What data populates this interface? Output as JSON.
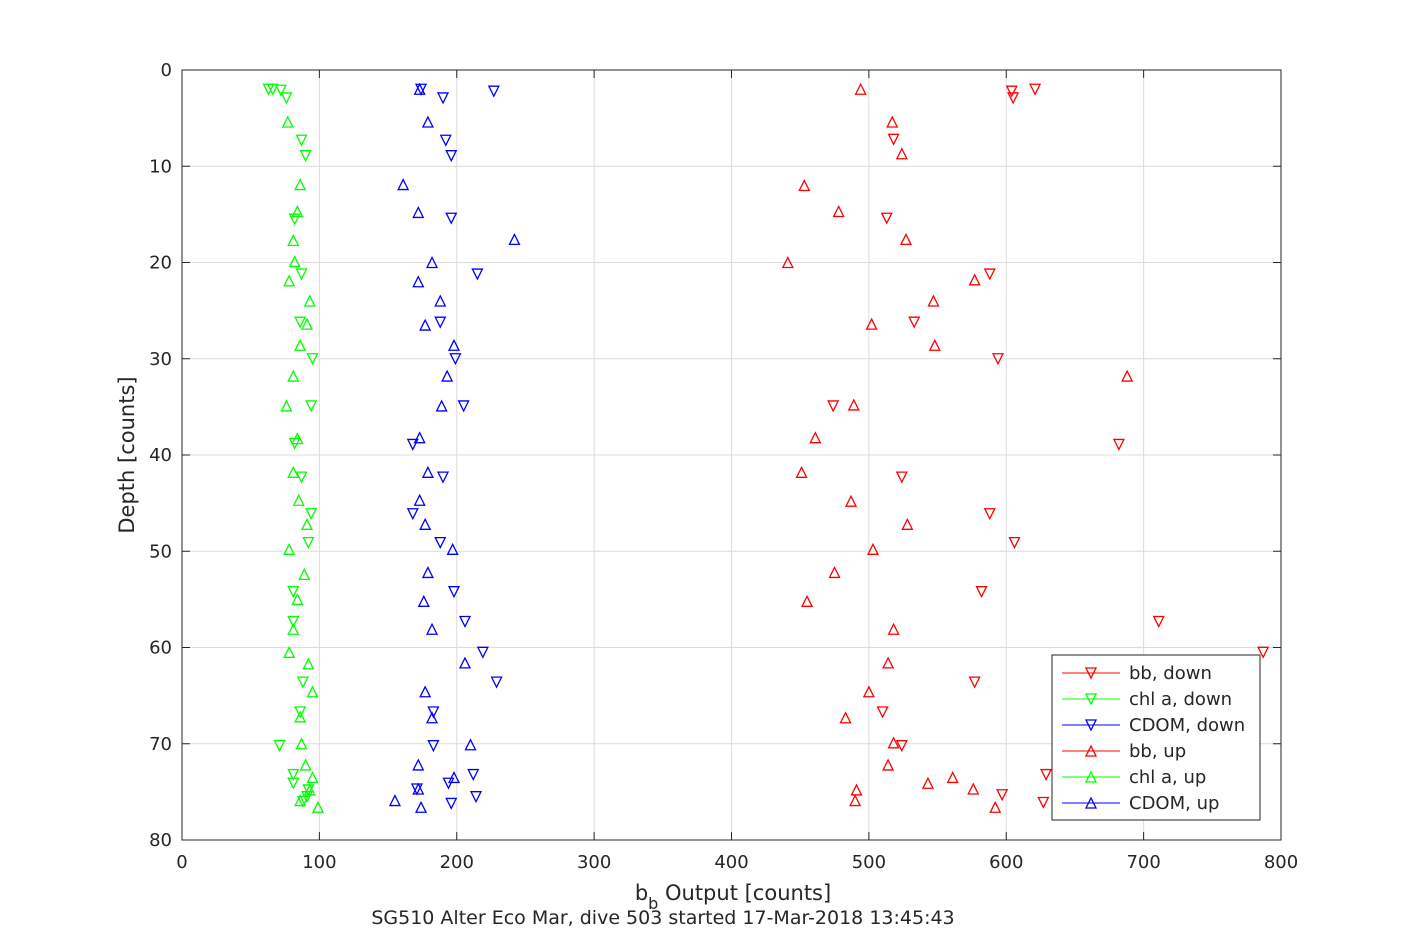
{
  "chart_data": {
    "type": "scatter",
    "xlabel": "b_b Output [counts]",
    "xlabel_main": "b",
    "xlabel_sub": "b",
    "xlabel_rest": " Output [counts]",
    "ylabel": "Depth [counts]",
    "caption": "SG510 Alter Eco Mar, dive 503 started 17-Mar-2018 13:45:43",
    "xlim": [
      0,
      800
    ],
    "ylim": [
      0,
      80
    ],
    "y_reversed": true,
    "grid": true,
    "legend_position": "bottom-right",
    "xticks": [
      0,
      100,
      200,
      300,
      400,
      500,
      600,
      700,
      800
    ],
    "yticks": [
      0,
      10,
      20,
      30,
      40,
      50,
      60,
      70,
      80
    ],
    "series": [
      {
        "name": "bb, down",
        "color": "#ff0000",
        "marker": "triangle-down",
        "points": [
          [
            604,
            2.2
          ],
          [
            621,
            2.0
          ],
          [
            605,
            2.9
          ],
          [
            518,
            7.2
          ],
          [
            513,
            15.4
          ],
          [
            588,
            21.2
          ],
          [
            533,
            26.2
          ],
          [
            594,
            30.0
          ],
          [
            474,
            34.9
          ],
          [
            682,
            38.9
          ],
          [
            524,
            42.3
          ],
          [
            588,
            46.1
          ],
          [
            606,
            49.1
          ],
          [
            582,
            54.2
          ],
          [
            711,
            57.3
          ],
          [
            787,
            60.5
          ],
          [
            577,
            63.6
          ],
          [
            510,
            66.7
          ],
          [
            524,
            70.2
          ],
          [
            629,
            73.2
          ],
          [
            597,
            75.3
          ],
          [
            627,
            76.1
          ]
        ]
      },
      {
        "name": "chl a, down",
        "color": "#00ff00",
        "marker": "triangle-down",
        "points": [
          [
            63,
            2.0
          ],
          [
            66,
            2.0
          ],
          [
            72,
            2.1
          ],
          [
            76,
            2.9
          ],
          [
            87,
            7.3
          ],
          [
            90,
            8.9
          ],
          [
            82,
            15.5
          ],
          [
            87,
            21.2
          ],
          [
            86,
            26.2
          ],
          [
            95,
            30.0
          ],
          [
            94,
            34.9
          ],
          [
            82,
            38.8
          ],
          [
            87,
            42.3
          ],
          [
            94,
            46.1
          ],
          [
            92,
            49.1
          ],
          [
            81,
            54.2
          ],
          [
            81,
            57.3
          ],
          [
            88,
            63.6
          ],
          [
            86,
            66.7
          ],
          [
            71,
            70.2
          ],
          [
            81,
            73.2
          ],
          [
            81,
            74.1
          ],
          [
            92,
            74.8
          ],
          [
            91,
            75.5
          ],
          [
            88,
            76.0
          ]
        ]
      },
      {
        "name": "CDOM, down",
        "color": "#0000ff",
        "marker": "triangle-down",
        "points": [
          [
            174,
            2.0
          ],
          [
            227,
            2.2
          ],
          [
            190,
            2.9
          ],
          [
            192,
            7.3
          ],
          [
            196,
            8.9
          ],
          [
            196,
            15.4
          ],
          [
            215,
            21.2
          ],
          [
            188,
            26.2
          ],
          [
            199,
            30.0
          ],
          [
            205,
            34.9
          ],
          [
            168,
            38.9
          ],
          [
            190,
            42.3
          ],
          [
            168,
            46.1
          ],
          [
            188,
            49.1
          ],
          [
            198,
            54.2
          ],
          [
            206,
            57.3
          ],
          [
            219,
            60.5
          ],
          [
            229,
            63.6
          ],
          [
            183,
            66.7
          ],
          [
            183,
            70.2
          ],
          [
            212,
            73.2
          ],
          [
            194,
            74.1
          ],
          [
            171,
            74.7
          ],
          [
            214,
            75.5
          ],
          [
            196,
            76.2
          ]
        ]
      },
      {
        "name": "bb, up",
        "color": "#ff0000",
        "marker": "triangle-up",
        "points": [
          [
            494,
            2.0
          ],
          [
            517,
            5.4
          ],
          [
            524,
            8.7
          ],
          [
            453,
            12.0
          ],
          [
            478,
            14.7
          ],
          [
            527,
            17.6
          ],
          [
            441,
            20.0
          ],
          [
            577,
            21.8
          ],
          [
            547,
            24.0
          ],
          [
            502,
            26.4
          ],
          [
            548,
            28.6
          ],
          [
            688,
            31.8
          ],
          [
            489,
            34.8
          ],
          [
            461,
            38.2
          ],
          [
            451,
            41.8
          ],
          [
            487,
            44.8
          ],
          [
            528,
            47.2
          ],
          [
            503,
            49.8
          ],
          [
            475,
            52.2
          ],
          [
            455,
            55.2
          ],
          [
            518,
            58.1
          ],
          [
            514,
            61.6
          ],
          [
            500,
            64.6
          ],
          [
            483,
            67.3
          ],
          [
            518,
            69.9
          ],
          [
            514,
            72.2
          ],
          [
            561,
            73.5
          ],
          [
            543,
            74.1
          ],
          [
            576,
            74.7
          ],
          [
            491,
            74.8
          ],
          [
            490,
            75.9
          ],
          [
            592,
            76.6
          ]
        ]
      },
      {
        "name": "chl a, up",
        "color": "#00ff00",
        "marker": "triangle-up",
        "points": [
          [
            77,
            5.4
          ],
          [
            86,
            11.9
          ],
          [
            84,
            14.7
          ],
          [
            81,
            17.7
          ],
          [
            82,
            19.9
          ],
          [
            78,
            21.9
          ],
          [
            93,
            24.0
          ],
          [
            91,
            26.4
          ],
          [
            86,
            28.6
          ],
          [
            81,
            31.8
          ],
          [
            76,
            34.9
          ],
          [
            84,
            38.3
          ],
          [
            81,
            41.8
          ],
          [
            85,
            44.7
          ],
          [
            91,
            47.2
          ],
          [
            78,
            49.8
          ],
          [
            89,
            52.4
          ],
          [
            84,
            55.0
          ],
          [
            81,
            58.1
          ],
          [
            78,
            60.5
          ],
          [
            92,
            61.7
          ],
          [
            95,
            64.6
          ],
          [
            86,
            67.2
          ],
          [
            87,
            70.0
          ],
          [
            90,
            72.2
          ],
          [
            95,
            73.5
          ],
          [
            93,
            74.8
          ],
          [
            99,
            76.6
          ],
          [
            86,
            75.9
          ]
        ]
      },
      {
        "name": "CDOM, up",
        "color": "#0000ff",
        "marker": "triangle-up",
        "points": [
          [
            173,
            2.0
          ],
          [
            179,
            5.4
          ],
          [
            161,
            11.9
          ],
          [
            172,
            14.8
          ],
          [
            242,
            17.6
          ],
          [
            182,
            20.0
          ],
          [
            172,
            22.0
          ],
          [
            188,
            24.0
          ],
          [
            177,
            26.5
          ],
          [
            198,
            28.6
          ],
          [
            193,
            31.8
          ],
          [
            189,
            34.9
          ],
          [
            173,
            38.2
          ],
          [
            179,
            41.8
          ],
          [
            173,
            44.7
          ],
          [
            177,
            47.2
          ],
          [
            197,
            49.8
          ],
          [
            179,
            52.2
          ],
          [
            176,
            55.2
          ],
          [
            182,
            58.1
          ],
          [
            206,
            61.6
          ],
          [
            177,
            64.6
          ],
          [
            182,
            67.3
          ],
          [
            210,
            70.1
          ],
          [
            172,
            72.2
          ],
          [
            198,
            73.5
          ],
          [
            172,
            74.7
          ],
          [
            155,
            75.9
          ],
          [
            174,
            76.6
          ]
        ]
      }
    ]
  }
}
